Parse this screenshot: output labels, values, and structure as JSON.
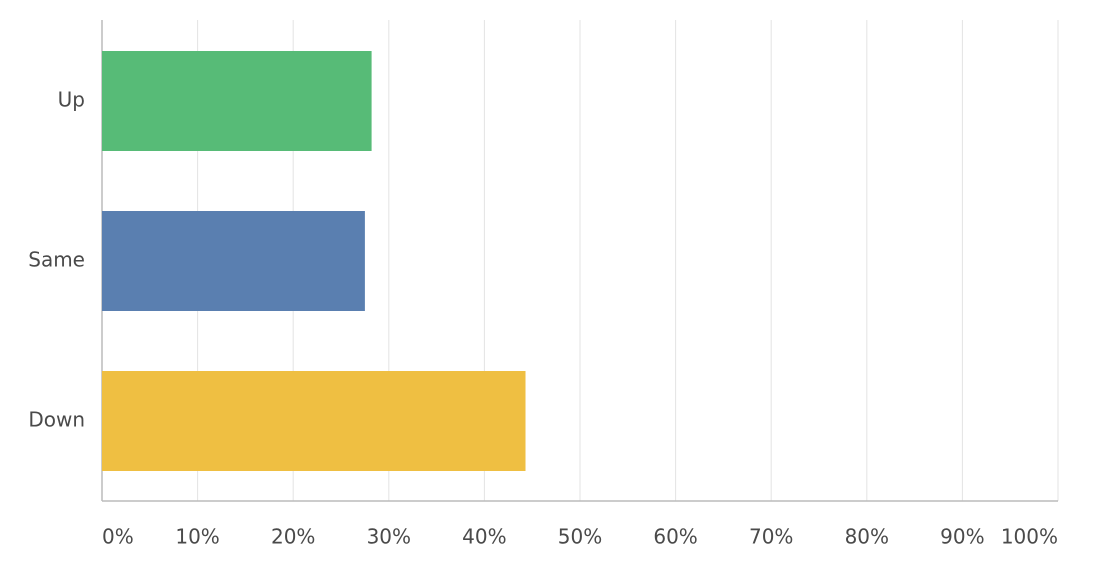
{
  "chart_data": {
    "type": "hbar",
    "categories": [
      "Up",
      "Same",
      "Down"
    ],
    "values": [
      28.2,
      27.5,
      44.3
    ],
    "colors": [
      "#57bb77",
      "#5a7fb0",
      "#efbf42"
    ],
    "xlim": [
      0,
      100
    ],
    "xticks": [
      {
        "value": 0,
        "label": "0%"
      },
      {
        "value": 10,
        "label": "10%"
      },
      {
        "value": 20,
        "label": "20%"
      },
      {
        "value": 30,
        "label": "30%"
      },
      {
        "value": 40,
        "label": "40%"
      },
      {
        "value": 50,
        "label": "50%"
      },
      {
        "value": 60,
        "label": "60%"
      },
      {
        "value": 70,
        "label": "70%"
      },
      {
        "value": 80,
        "label": "80%"
      },
      {
        "value": 90,
        "label": "90%"
      },
      {
        "value": 100,
        "label": "100%"
      }
    ],
    "grid": true
  }
}
